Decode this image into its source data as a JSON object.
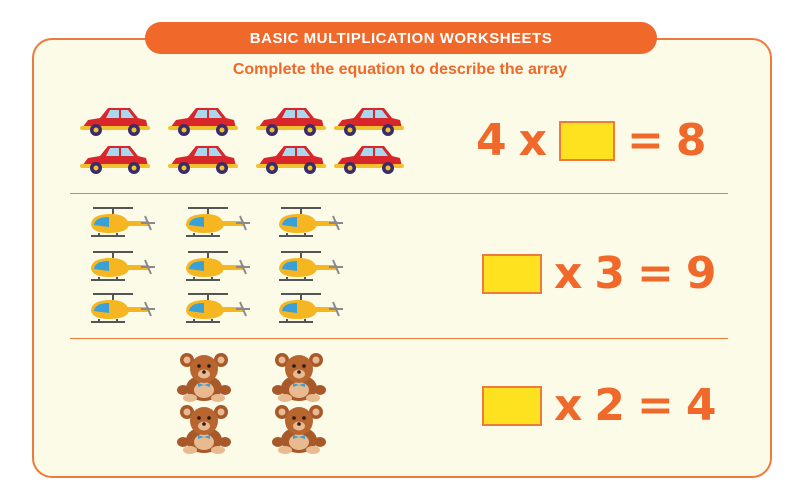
{
  "header": {
    "title": "BASIC MULTIPLICATION WORKSHEETS"
  },
  "instruction": "Complete the equation to describe the array",
  "colors": {
    "accent": "#f0682a",
    "answer_box": "#ffe21f",
    "background": "#fbfbe8"
  },
  "problems": [
    {
      "array_icon": "car-icon",
      "rows": 2,
      "columns": 4,
      "equation": {
        "a": "4",
        "op": "x",
        "b": "",
        "eq": "=",
        "result": "8"
      }
    },
    {
      "array_icon": "helicopter-icon",
      "rows": 3,
      "columns": 3,
      "equation": {
        "a": "",
        "op": "x",
        "b": "3",
        "eq": "=",
        "result": "9"
      }
    },
    {
      "array_icon": "teddy-bear-icon",
      "rows": 2,
      "columns": 2,
      "equation": {
        "a": "",
        "op": "x",
        "b": "2",
        "eq": "=",
        "result": "4"
      }
    }
  ]
}
